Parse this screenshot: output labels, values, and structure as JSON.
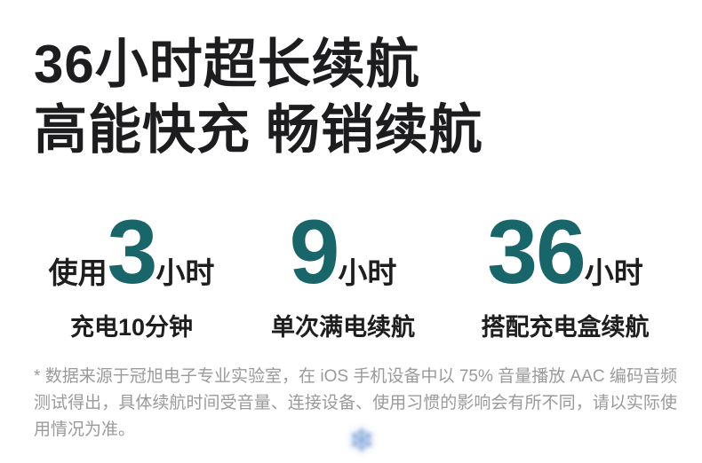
{
  "colors": {
    "background": "#ffffff",
    "title_text": "#1d1d1f",
    "accent_teal": "#186669",
    "label_text": "#1e1e1e",
    "footnote_text": "#9a9a9a",
    "watermark_blue": "#8aacdd"
  },
  "hero": {
    "title_line1": "36小时超长续航",
    "title_line2": "高能快充 畅销续航"
  },
  "stats": [
    {
      "prefix": "使用",
      "value": "3",
      "unit": "小时",
      "label": "充电10分钟"
    },
    {
      "prefix": "",
      "value": "9",
      "unit": "小时",
      "label": "单次满电续航"
    },
    {
      "prefix": "",
      "value": "36",
      "unit": "小时",
      "label": "搭配充电盒续航"
    }
  ],
  "footnote": {
    "text": "* 数据来源于冠旭电子专业实验室，在 iOS 手机设备中以 75% 音量播放 AAC 编码音频测试得出，具体续航时间受音量、连接设备、使用习惯的影响会有所不同，请以实际使用情况为准。"
  },
  "watermark": {
    "glyph": "❄"
  }
}
